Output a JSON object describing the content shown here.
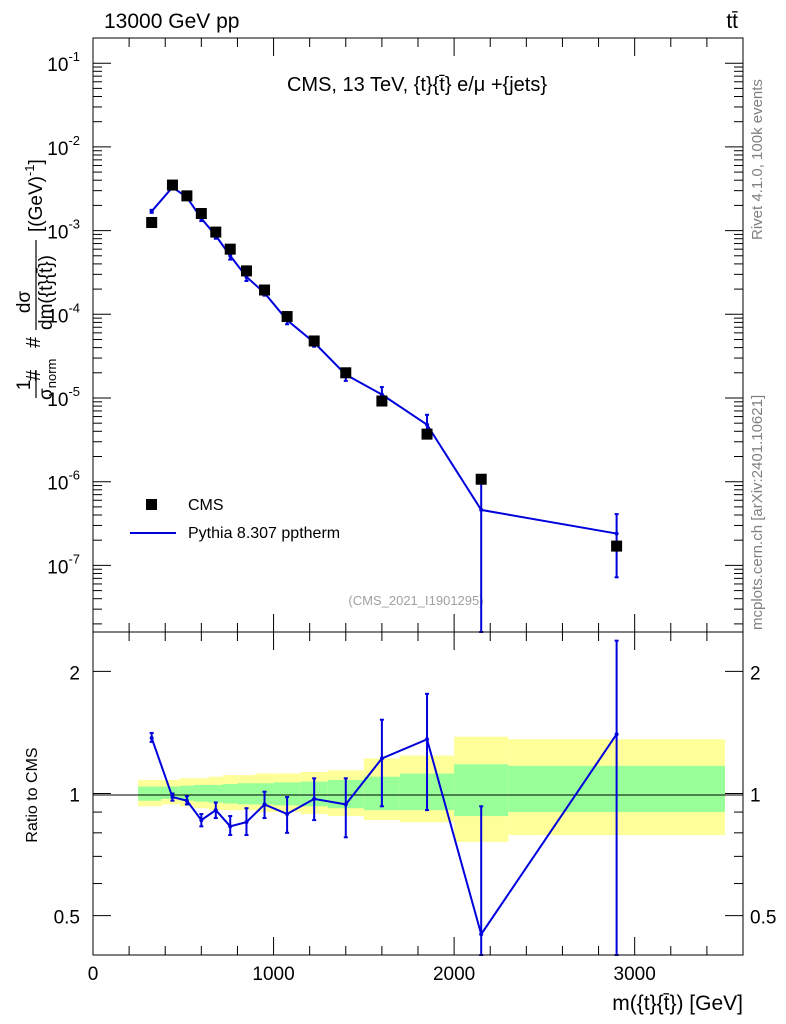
{
  "header": {
    "left": "13000 GeV pp",
    "right": "tt̄"
  },
  "side": {
    "rivet": "Rivet 4.1.0,  100k events",
    "mcplots": "mcplots.cern.ch [arXiv:2401.10621]"
  },
  "colors": {
    "mc": "#0000dd",
    "data": "#000000",
    "band_inner": "#99ff99",
    "band_outer": "#ffff99"
  },
  "chart_data": [
    {
      "type": "scatter",
      "title": "CMS, 13 TeV, {t}{t̄} e/μ +{jets}",
      "analysis_label": "(CMS_2021_I1901295)",
      "xlabel": "m({t}{t̄}) [GeV]",
      "ylabel": "#1/σnorm #dσ/dm({t}{t̄}) [(GeV)^-1]",
      "ylabel_parts": {
        "hash1": "#",
        "num1": "1",
        "den1": "σ",
        "den1_sub": "norm",
        "hash2": "#",
        "num2": "dσ",
        "den2": "dm({t}{t̄})",
        "unit": "[(GeV)",
        "unit_exp": "-1",
        "unit_close": "]"
      },
      "y_scale": "log",
      "xlim": [
        0,
        3600
      ],
      "ylim": [
        1.6e-08,
        0.2
      ],
      "y_ticks": [
        {
          "value": 1e-07,
          "base": "10",
          "exp": "-7"
        },
        {
          "value": 1e-06,
          "base": "10",
          "exp": "-6"
        },
        {
          "value": 1e-05,
          "base": "10",
          "exp": "-5"
        },
        {
          "value": 0.0001,
          "base": "10",
          "exp": "-4"
        },
        {
          "value": 0.001,
          "base": "10",
          "exp": "-3"
        },
        {
          "value": 0.01,
          "base": "10",
          "exp": "-2"
        },
        {
          "value": 0.1,
          "base": "10",
          "exp": "-1"
        }
      ],
      "legend_position": "lower-left",
      "legend": [
        "CMS",
        "Pythia 8.307 pptherm"
      ],
      "series": [
        {
          "name": "CMS",
          "kind": "data",
          "x": [
            325,
            440,
            520,
            600,
            680,
            760,
            850,
            950,
            1075,
            1225,
            1400,
            1600,
            1850,
            2150,
            2900
          ],
          "values": [
            0.00125,
            0.0035,
            0.0026,
            0.0016,
            0.00096,
            0.0006,
            0.00033,
            0.000195,
            9.4e-05,
            4.8e-05,
            2e-05,
            9.2e-06,
            3.7e-06,
            1.07e-06,
            1.7e-07
          ]
        },
        {
          "name": "Pythia 8.307 pptherm",
          "kind": "mc",
          "x": [
            325,
            440,
            520,
            600,
            680,
            760,
            850,
            950,
            1075,
            1225,
            1400,
            1600,
            1850,
            2150,
            2900
          ],
          "values": [
            0.0017,
            0.0033,
            0.0025,
            0.0014,
            0.00087,
            0.0005,
            0.00028,
            0.00018,
            8.5e-05,
            4.6e-05,
            1.9e-05,
            1.1e-05,
            4.8e-06,
            4.6e-07,
            2.4e-07
          ],
          "err_low": [
            0.00163,
            0.0032,
            0.00242,
            0.0013,
            0.0008,
            0.00045,
            0.00025,
            0.000167,
            7.6e-05,
            4.1e-05,
            1.6e-05,
            8.6e-06,
            3.3e-06,
            1e-08,
            7.2e-08
          ],
          "err_high": [
            0.00177,
            0.0034,
            0.00258,
            0.0015,
            0.00094,
            0.00055,
            0.00031,
            0.000193,
            9.4e-05,
            5.1e-05,
            2.2e-05,
            1.35e-05,
            6.3e-06,
            1.05e-06,
            4.1e-07
          ]
        }
      ]
    },
    {
      "type": "line",
      "title": "",
      "xlabel": "m({t}{t̄}) [GeV]",
      "ylabel": "Ratio to CMS",
      "y_scale": "log",
      "xlim": [
        0,
        3600
      ],
      "ylim": [
        0.4,
        2.5
      ],
      "x_ticks": [
        0,
        1000,
        2000,
        3000
      ],
      "y_ticks": [
        0.5,
        1,
        2
      ],
      "reference_line": 1,
      "bands": {
        "edges": [
          250,
          380,
          480,
          560,
          640,
          720,
          800,
          900,
          1000,
          1150,
          1300,
          1500,
          1700,
          2000,
          2300,
          3500
        ],
        "inner_low": [
          0.96,
          0.97,
          0.96,
          0.955,
          0.95,
          0.945,
          0.94,
          0.94,
          0.935,
          0.93,
          0.92,
          0.91,
          0.91,
          0.88,
          0.9
        ],
        "inner_high": [
          1.04,
          1.04,
          1.045,
          1.05,
          1.05,
          1.055,
          1.06,
          1.06,
          1.065,
          1.07,
          1.08,
          1.1,
          1.12,
          1.18,
          1.17
        ],
        "outer_low": [
          0.93,
          0.94,
          0.93,
          0.92,
          0.91,
          0.91,
          0.91,
          0.9,
          0.9,
          0.89,
          0.88,
          0.86,
          0.85,
          0.76,
          0.79
        ],
        "outer_high": [
          1.08,
          1.08,
          1.09,
          1.09,
          1.1,
          1.11,
          1.11,
          1.12,
          1.12,
          1.13,
          1.14,
          1.22,
          1.24,
          1.38,
          1.36
        ]
      },
      "series": [
        {
          "name": "Pythia 8.307 pptherm",
          "x": [
            325,
            440,
            520,
            600,
            680,
            760,
            850,
            950,
            1075,
            1225,
            1400,
            1600,
            1850,
            2150,
            2900
          ],
          "values": [
            1.37,
            0.98,
            0.96,
            0.86,
            0.91,
            0.83,
            0.85,
            0.94,
            0.89,
            0.97,
            0.94,
            1.22,
            1.36,
            0.45,
            1.4
          ],
          "err_low": [
            1.34,
            0.96,
            0.94,
            0.83,
            0.87,
            0.79,
            0.79,
            0.87,
            0.8,
            0.86,
            0.78,
            0.93,
            0.91,
            0.4,
            0.4
          ],
          "err_high": [
            1.41,
            1.0,
            0.985,
            0.89,
            0.95,
            0.88,
            0.92,
            1.01,
            0.98,
            1.09,
            1.09,
            1.52,
            1.76,
            0.93,
            2.38
          ]
        }
      ]
    }
  ]
}
